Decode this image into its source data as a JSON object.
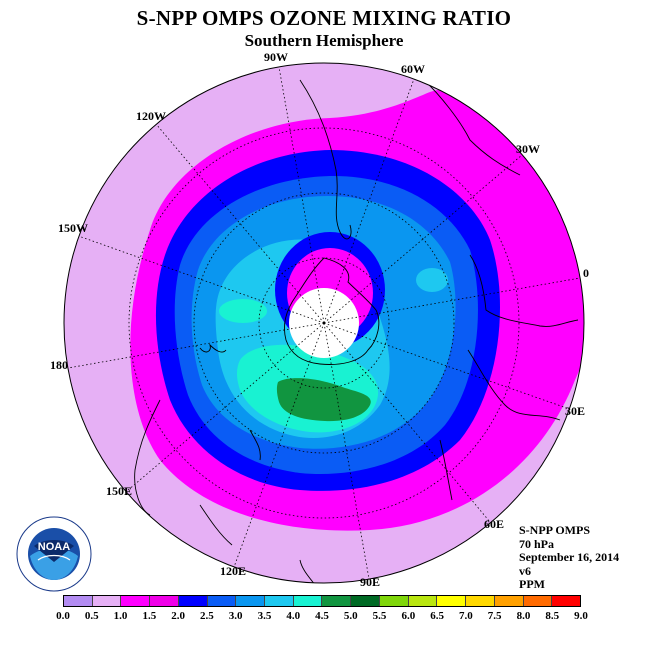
{
  "title": "S-NPP OMPS OZONE MIXING RATIO",
  "subtitle": "Southern Hemisphere",
  "longitude_labels": [
    "90W",
    "60W",
    "120W",
    "30W",
    "150W",
    "0",
    "180",
    "30E",
    "150E",
    "60E",
    "120E",
    "90E"
  ],
  "info": {
    "instrument": "S-NPP OMPS",
    "level": "70 hPa",
    "date": "September 16, 2014",
    "version": "v6",
    "units": "PPM"
  },
  "logo": {
    "text": "NOAA"
  },
  "colorbar": {
    "ticks": [
      "0.0",
      "0.5",
      "1.0",
      "1.5",
      "2.0",
      "2.5",
      "3.0",
      "3.5",
      "4.0",
      "4.5",
      "5.0",
      "5.5",
      "6.0",
      "6.5",
      "7.0",
      "7.5",
      "8.0",
      "8.5",
      "9.0"
    ],
    "colors": [
      "#b38cf2",
      "#e6b0f5",
      "#ff00ff",
      "#f000e8",
      "#0000ff",
      "#0a5cf5",
      "#0a96f0",
      "#1ec8f0",
      "#19f2d2",
      "#119540",
      "#006a24",
      "#7fd60a",
      "#b9e610",
      "#ffff00",
      "#ffd800",
      "#ffa000",
      "#ff6a00",
      "#ff0000",
      "#8c5a3c"
    ]
  }
}
